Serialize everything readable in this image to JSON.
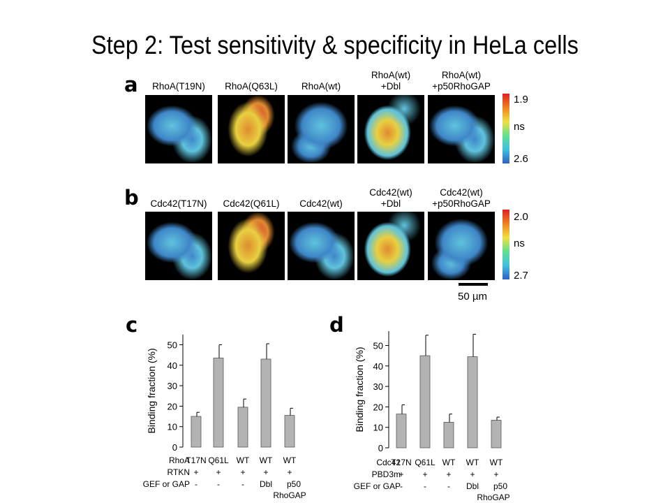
{
  "slide_title": "Step 2: Test sensitivity & specificity in HeLa cells",
  "panel_a": {
    "letter": "a",
    "labels": [
      [
        "RhoA(T19N)",
        ""
      ],
      [
        "RhoA(Q63L)",
        ""
      ],
      [
        "RhoA(wt)",
        ""
      ],
      [
        "RhoA(wt)",
        "+Dbl"
      ],
      [
        "RhoA(wt)",
        "+p50RhoGAP"
      ]
    ],
    "scale_top": "1.9",
    "scale_mid": "ns",
    "scale_bottom": "2.6"
  },
  "panel_b": {
    "letter": "b",
    "labels": [
      [
        "Cdc42(T17N)",
        ""
      ],
      [
        "Cdc42(Q61L)",
        ""
      ],
      [
        "Cdc42(wt)",
        ""
      ],
      [
        "Cdc42(wt)",
        "+Dbl"
      ],
      [
        "Cdc42(wt)",
        "+p50RhoGAP"
      ]
    ],
    "scale_top": "2.0",
    "scale_mid": "ns",
    "scale_bottom": "2.7"
  },
  "scale_bar_label": "50 µm",
  "image_palette": {
    "blue": "#3f86c8",
    "cyan": "#5fc3dc",
    "yellow": "#e8d040",
    "orange": "#e08a30",
    "red": "#d43a2a"
  },
  "panel_c_letter": "c",
  "panel_d_letter": "d",
  "chart_data": [
    {
      "type": "bar",
      "panel": "c",
      "ylabel": "Binding fraction (%)",
      "ylim": [
        0,
        55
      ],
      "yticks": [
        "0",
        "10",
        "20",
        "30",
        "40",
        "50"
      ],
      "categories": [
        "T17N",
        "Q61L",
        "WT",
        "WT",
        "WT"
      ],
      "values": [
        15,
        43.5,
        19.5,
        43,
        15.5
      ],
      "errors": [
        2,
        6.5,
        4,
        7.5,
        3.5
      ],
      "row_labels": [
        {
          "label": "RhoA",
          "entries": [
            "T17N",
            "Q61L",
            "WT",
            "WT",
            "WT"
          ]
        },
        {
          "label": "RTKN",
          "entries": [
            "+",
            "+",
            "+",
            "+",
            "+"
          ]
        },
        {
          "label": "GEF or GAP",
          "entries": [
            "-",
            "-",
            "-",
            "Dbl",
            "p50"
          ]
        }
      ],
      "extra_label": "RhoGAP",
      "bar_color": "#b3b3b3"
    },
    {
      "type": "bar",
      "panel": "d",
      "ylabel": "Binding fraction (%)",
      "ylim": [
        0,
        57
      ],
      "yticks": [
        "0",
        "10",
        "20",
        "30",
        "40",
        "50"
      ],
      "categories": [
        "T17N",
        "Q61L",
        "WT",
        "WT",
        "WT"
      ],
      "values": [
        16.5,
        45,
        12.5,
        44.5,
        13.5
      ],
      "errors": [
        4.5,
        10,
        4,
        11,
        1.5
      ],
      "row_labels": [
        {
          "label": "Cdc42",
          "entries": [
            "T17N",
            "Q61L",
            "WT",
            "WT",
            "WT"
          ]
        },
        {
          "label": "PBD3m",
          "entries": [
            "+",
            "+",
            "+",
            "+",
            "+"
          ]
        },
        {
          "label": "GEF or GAP",
          "entries": [
            "-",
            "-",
            "-",
            "Dbl",
            "p50"
          ]
        }
      ],
      "extra_label": "RhoGAP",
      "bar_color": "#b3b3b3"
    }
  ]
}
